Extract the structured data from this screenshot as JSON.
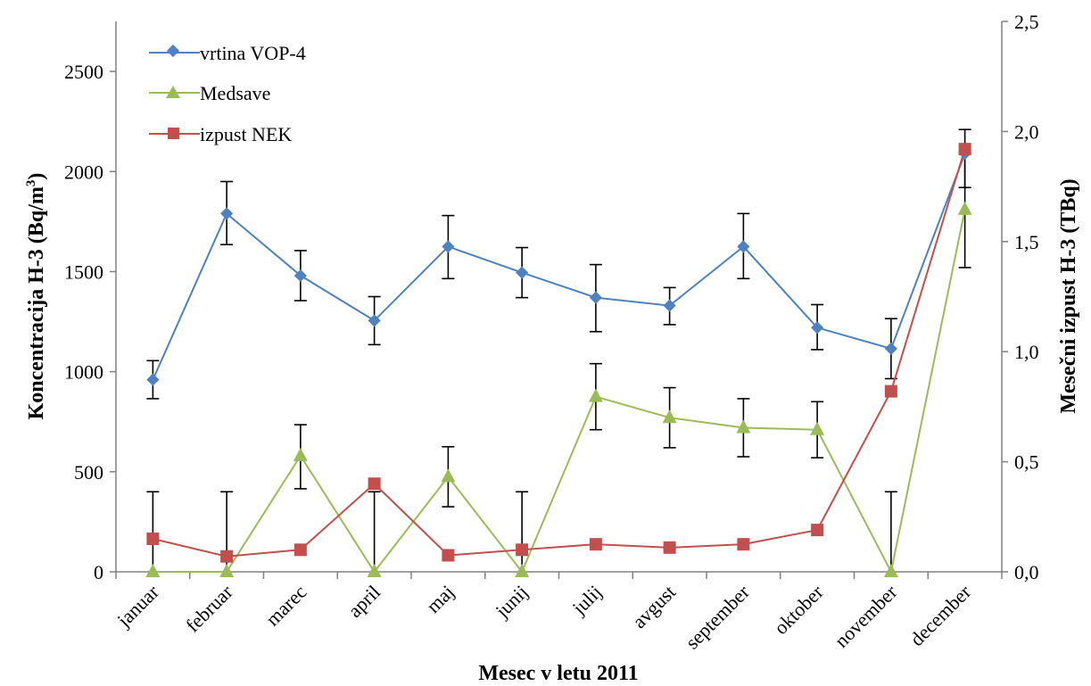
{
  "chart_data": {
    "type": "line",
    "title": "",
    "xlabel": "Mesec v letu 2011",
    "ylabel_left_prefix": "Koncentracija  H-3 (Bq/m",
    "ylabel_left_sup": "3",
    "ylabel_left_suffix": ")",
    "ylabel_right": "Mesečni izpust  H-3  (TBq)",
    "categories": [
      "januar",
      "februar",
      "marec",
      "april",
      "maj",
      "junij",
      "julij",
      "avgust",
      "september",
      "oktober",
      "november",
      "december"
    ],
    "y_left": {
      "min": 0,
      "max": 2750,
      "ticks": [
        0,
        500,
        1000,
        1500,
        2000,
        2500
      ],
      "tick_labels": [
        "0",
        "500",
        "1000",
        "1500",
        "2000",
        "2500"
      ]
    },
    "y_right": {
      "min": 0,
      "max": 2.5,
      "ticks": [
        0,
        0.5,
        1,
        1.5,
        2,
        2.5
      ],
      "tick_labels": [
        "0,0",
        "0,5",
        "1,0",
        "1,5",
        "2,0",
        "2,5"
      ]
    },
    "grid": false,
    "legend_position": "top-left",
    "series": [
      {
        "name": "vrtina VOP-4",
        "axis": "left",
        "marker": "diamond",
        "color": "#4F81BD",
        "values": [
          960,
          1790,
          1480,
          1255,
          1625,
          1495,
          1370,
          1330,
          1625,
          1220,
          1115,
          2090
        ],
        "err_lower": [
          95,
          155,
          125,
          120,
          160,
          125,
          170,
          95,
          160,
          110,
          150,
          170
        ],
        "err_upper": [
          95,
          160,
          125,
          120,
          155,
          125,
          165,
          90,
          165,
          115,
          150,
          120
        ]
      },
      {
        "name": "Medsave",
        "axis": "left",
        "marker": "triangle",
        "color": "#9BBB59",
        "values": [
          0,
          0,
          580,
          0,
          475,
          0,
          875,
          770,
          720,
          710,
          0,
          1810
        ],
        "err_lower": [
          0,
          0,
          165,
          0,
          150,
          0,
          165,
          150,
          145,
          140,
          0,
          290
        ],
        "err_upper": [
          400,
          400,
          155,
          400,
          150,
          400,
          165,
          150,
          145,
          140,
          400,
          280
        ]
      },
      {
        "name": "izpust NEK",
        "axis": "right",
        "marker": "square",
        "color": "#C0504D",
        "values": [
          0.15,
          0.07,
          0.1,
          0.4,
          0.075,
          0.1,
          0.125,
          0.11,
          0.125,
          0.19,
          0.82,
          1.92
        ]
      }
    ]
  }
}
